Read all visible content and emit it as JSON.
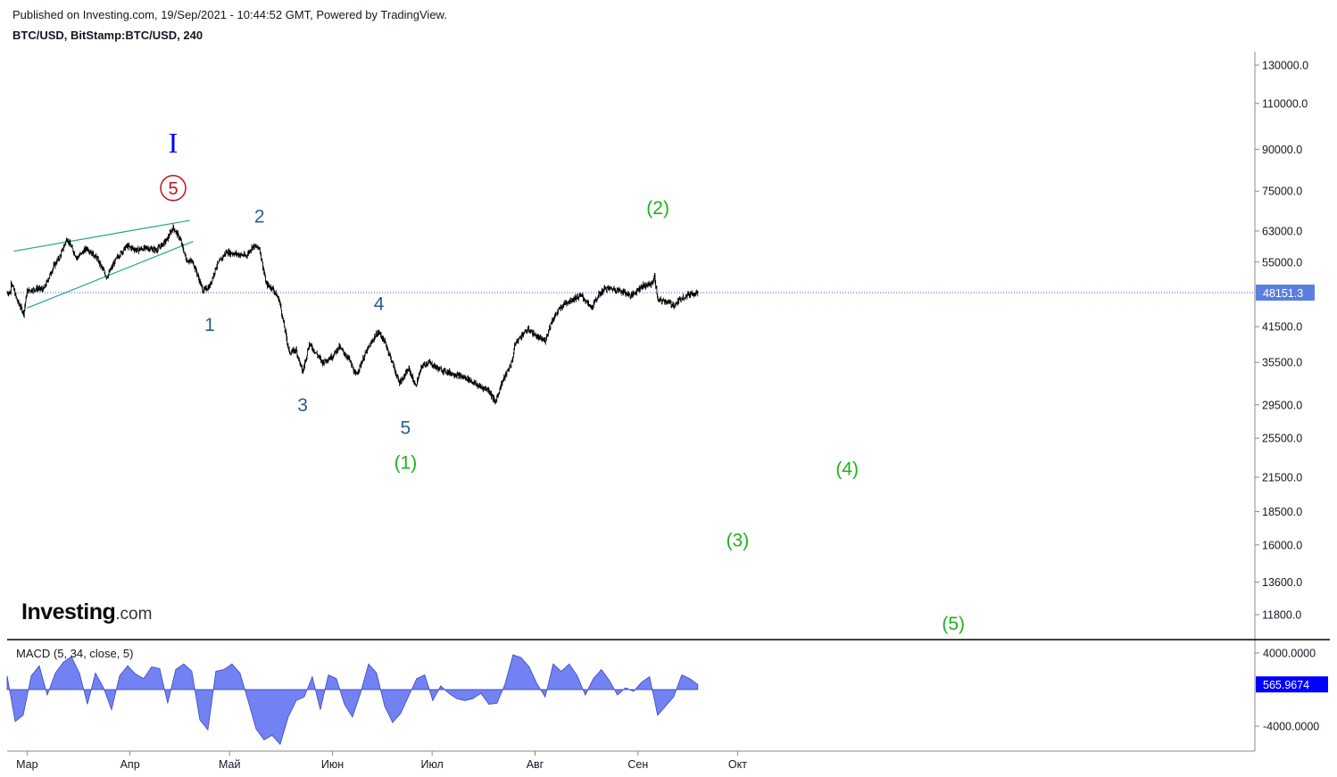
{
  "header": {
    "published": "Published on Investing.com, 19/Sep/2021 - 10:44:52 GMT, Powered by TradingView.",
    "symbol": "BTC/USD, BitStamp:BTC/USD, 240"
  },
  "logo": {
    "main": "Investing",
    "suffix": ".com"
  },
  "colors": {
    "candles": "#000000",
    "price_line": "#3b5bdb",
    "price_badge": "#5b7fe0",
    "macd_fill": "#5b6cf0",
    "macd_badge": "#0000ff",
    "wave_minor": "#2a5d8f",
    "wave_green": "#1db21d",
    "wave_red": "#c0141c",
    "wave_blue": "#0000ff",
    "trendline": "#1fa68f"
  },
  "chart_data": [
    {
      "type": "candlestick",
      "title": "BTC/USD, BitStamp:BTC/USD, 240",
      "y_scale": "log",
      "ylim": [
        10500,
        140000
      ],
      "x_axis_ticks": [
        "Мар",
        "Апр",
        "Май",
        "Июн",
        "Июл",
        "Авг",
        "Сен",
        "Окт"
      ],
      "y_axis_ticks": [
        "130000.0",
        "110000.0",
        "90000.0",
        "75000.0",
        "63000.0",
        "55000.0",
        "41500.0",
        "35500.0",
        "29500.0",
        "25500.0",
        "21500.0",
        "18500.0",
        "16000.0",
        "13600.0",
        "11800.0"
      ],
      "last_price": "48151.3",
      "price_path": [
        {
          "date": "2021-02-24",
          "close": 51000
        },
        {
          "date": "2021-02-26",
          "close": 46500
        },
        {
          "date": "2021-02-28",
          "close": 44000
        },
        {
          "date": "2021-03-01",
          "close": 48500
        },
        {
          "date": "2021-03-04",
          "close": 49000
        },
        {
          "date": "2021-03-06",
          "close": 48800
        },
        {
          "date": "2021-03-09",
          "close": 54000
        },
        {
          "date": "2021-03-11",
          "close": 56500
        },
        {
          "date": "2021-03-13",
          "close": 61000
        },
        {
          "date": "2021-03-16",
          "close": 56000
        },
        {
          "date": "2021-03-19",
          "close": 58500
        },
        {
          "date": "2021-03-22",
          "close": 56000
        },
        {
          "date": "2021-03-25",
          "close": 51500
        },
        {
          "date": "2021-03-28",
          "close": 56000
        },
        {
          "date": "2021-03-31",
          "close": 59000
        },
        {
          "date": "2021-04-03",
          "close": 58000
        },
        {
          "date": "2021-04-06",
          "close": 58500
        },
        {
          "date": "2021-04-09",
          "close": 58000
        },
        {
          "date": "2021-04-12",
          "close": 60500
        },
        {
          "date": "2021-04-14",
          "close": 64000
        },
        {
          "date": "2021-04-16",
          "close": 61000
        },
        {
          "date": "2021-04-18",
          "close": 55500
        },
        {
          "date": "2021-04-20",
          "close": 55000
        },
        {
          "date": "2021-04-23",
          "close": 48500
        },
        {
          "date": "2021-04-25",
          "close": 49500
        },
        {
          "date": "2021-04-27",
          "close": 54000
        },
        {
          "date": "2021-04-30",
          "close": 57500
        },
        {
          "date": "2021-05-03",
          "close": 57000
        },
        {
          "date": "2021-05-06",
          "close": 56500
        },
        {
          "date": "2021-05-08",
          "close": 59000
        },
        {
          "date": "2021-05-10",
          "close": 58500
        },
        {
          "date": "2021-05-12",
          "close": 50000
        },
        {
          "date": "2021-05-14",
          "close": 49000
        },
        {
          "date": "2021-05-16",
          "close": 46500
        },
        {
          "date": "2021-05-17",
          "close": 43000
        },
        {
          "date": "2021-05-19",
          "close": 37000
        },
        {
          "date": "2021-05-21",
          "close": 37500
        },
        {
          "date": "2021-05-23",
          "close": 34000
        },
        {
          "date": "2021-05-25",
          "close": 38500
        },
        {
          "date": "2021-05-27",
          "close": 37000
        },
        {
          "date": "2021-05-29",
          "close": 35500
        },
        {
          "date": "2021-06-01",
          "close": 36500
        },
        {
          "date": "2021-06-03",
          "close": 38000
        },
        {
          "date": "2021-06-06",
          "close": 36000
        },
        {
          "date": "2021-06-08",
          "close": 33500
        },
        {
          "date": "2021-06-11",
          "close": 37000
        },
        {
          "date": "2021-06-14",
          "close": 40000
        },
        {
          "date": "2021-06-15",
          "close": 40500
        },
        {
          "date": "2021-06-17",
          "close": 38500
        },
        {
          "date": "2021-06-19",
          "close": 35500
        },
        {
          "date": "2021-06-21",
          "close": 32500
        },
        {
          "date": "2021-06-22",
          "close": 33000
        },
        {
          "date": "2021-06-24",
          "close": 34500
        },
        {
          "date": "2021-06-26",
          "close": 32000
        },
        {
          "date": "2021-06-28",
          "close": 35000
        },
        {
          "date": "2021-06-30",
          "close": 35500
        },
        {
          "date": "2021-07-03",
          "close": 34500
        },
        {
          "date": "2021-07-06",
          "close": 34000
        },
        {
          "date": "2021-07-09",
          "close": 33500
        },
        {
          "date": "2021-07-12",
          "close": 33000
        },
        {
          "date": "2021-07-15",
          "close": 32000
        },
        {
          "date": "2021-07-18",
          "close": 31500
        },
        {
          "date": "2021-07-20",
          "close": 29800
        },
        {
          "date": "2021-07-22",
          "close": 32500
        },
        {
          "date": "2021-07-25",
          "close": 35500
        },
        {
          "date": "2021-07-26",
          "close": 38500
        },
        {
          "date": "2021-07-28",
          "close": 40000
        },
        {
          "date": "2021-07-30",
          "close": 41000
        },
        {
          "date": "2021-08-02",
          "close": 39500
        },
        {
          "date": "2021-08-04",
          "close": 39000
        },
        {
          "date": "2021-08-06",
          "close": 42500
        },
        {
          "date": "2021-08-08",
          "close": 44500
        },
        {
          "date": "2021-08-10",
          "close": 46000
        },
        {
          "date": "2021-08-13",
          "close": 47000
        },
        {
          "date": "2021-08-15",
          "close": 47500
        },
        {
          "date": "2021-08-18",
          "close": 45000
        },
        {
          "date": "2021-08-20",
          "close": 47500
        },
        {
          "date": "2021-08-22",
          "close": 49000
        },
        {
          "date": "2021-08-24",
          "close": 49000
        },
        {
          "date": "2021-08-27",
          "close": 48500
        },
        {
          "date": "2021-08-30",
          "close": 47500
        },
        {
          "date": "2021-09-02",
          "close": 49500
        },
        {
          "date": "2021-09-05",
          "close": 50000
        },
        {
          "date": "2021-09-06",
          "close": 51500
        },
        {
          "date": "2021-09-07",
          "close": 46500
        },
        {
          "date": "2021-09-09",
          "close": 46500
        },
        {
          "date": "2021-09-12",
          "close": 45500
        },
        {
          "date": "2021-09-14",
          "close": 47000
        },
        {
          "date": "2021-09-17",
          "close": 48000
        },
        {
          "date": "2021-09-19",
          "close": 48151.3
        }
      ],
      "wave_labels": [
        {
          "text": "I",
          "date": "2021-04-14",
          "price": 93000,
          "color": "blue",
          "style": "roman"
        },
        {
          "text": "5",
          "date": "2021-04-14",
          "price": 76000,
          "color": "red",
          "style": "circled"
        },
        {
          "text": "1",
          "date": "2021-04-25",
          "price": 42000,
          "color": "minor"
        },
        {
          "text": "2",
          "date": "2021-05-10",
          "price": 67500,
          "color": "minor"
        },
        {
          "text": "3",
          "date": "2021-05-23",
          "price": 29600,
          "color": "minor"
        },
        {
          "text": "4",
          "date": "2021-06-15",
          "price": 46000,
          "color": "minor"
        },
        {
          "text": "5",
          "date": "2021-06-23",
          "price": 26800,
          "color": "minor"
        },
        {
          "text": "(1)",
          "date": "2021-06-23",
          "price": 23000,
          "color": "green"
        },
        {
          "text": "(2)",
          "date": "2021-09-07",
          "price": 70000,
          "color": "green"
        },
        {
          "text": "(3)",
          "date": "2021-10-01",
          "price": 16400,
          "color": "green"
        },
        {
          "text": "(4)",
          "date": "2021-11-03",
          "price": 22400,
          "color": "green"
        },
        {
          "text": "(5)",
          "date": "2021-12-05",
          "price": 11400,
          "color": "green"
        }
      ],
      "trendlines": [
        {
          "from": {
            "date": "2021-02-25",
            "price": 57700
          },
          "to": {
            "date": "2021-04-19",
            "price": 66000
          }
        },
        {
          "from": {
            "date": "2021-03-01",
            "price": 45000
          },
          "to": {
            "date": "2021-04-20",
            "price": 60200
          }
        }
      ]
    },
    {
      "type": "area",
      "title": "MACD (5, 34, close, 5)",
      "ylim": [
        -6000,
        5200
      ],
      "y_axis_ticks": [
        "4000.0000",
        "-4000.0000"
      ],
      "last_value": "565.9674",
      "values": [
        1500,
        -3500,
        -2800,
        1500,
        2600,
        -600,
        1800,
        3000,
        3600,
        1800,
        -1600,
        1800,
        200,
        -2200,
        1500,
        2600,
        1700,
        1200,
        2500,
        2300,
        -1500,
        2200,
        2800,
        2000,
        -3300,
        -4400,
        2000,
        2200,
        2800,
        1800,
        -1200,
        -4300,
        -5500,
        -5000,
        -6000,
        -3000,
        -1200,
        -800,
        1400,
        -2200,
        1600,
        1200,
        -1600,
        -3000,
        -400,
        2800,
        1800,
        -1800,
        -3600,
        -2600,
        -700,
        1200,
        1600,
        -1200,
        400,
        -400,
        -1000,
        -1200,
        -1000,
        -400,
        -1600,
        -1500,
        600,
        3800,
        3500,
        2500,
        600,
        -800,
        2800,
        2000,
        2800,
        1500,
        -600,
        1200,
        2200,
        1000,
        -600,
        200,
        -200,
        800,
        1400,
        -2800,
        -1800,
        -800,
        1600,
        1200,
        565.9674
      ]
    }
  ]
}
